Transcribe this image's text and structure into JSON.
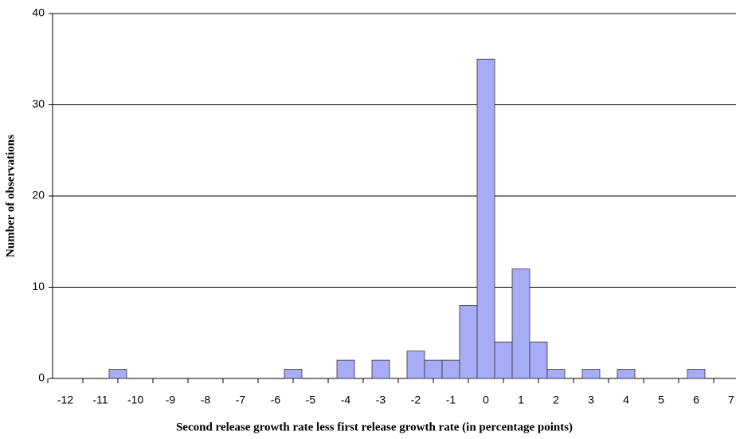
{
  "chart_data": {
    "type": "bar",
    "x_label": "Second release growth rate less first release growth rate (in percentage points)",
    "y_label": "Number of observations",
    "categories": [
      "-12",
      null,
      "-11",
      null,
      "-10",
      null,
      "-9",
      null,
      "-8",
      null,
      "-7",
      null,
      "-6",
      null,
      "-5",
      null,
      "-4",
      null,
      "-3",
      null,
      "-2",
      null,
      "-1",
      null,
      "0",
      null,
      "1",
      null,
      "2",
      null,
      "3",
      null,
      "4",
      null,
      "5",
      null,
      "6",
      null,
      "7"
    ],
    "values": [
      0,
      0,
      0,
      1,
      0,
      0,
      0,
      0,
      0,
      0,
      0,
      0,
      0,
      1,
      0,
      0,
      2,
      0,
      2,
      0,
      3,
      2,
      2,
      8,
      35,
      4,
      12,
      4,
      1,
      0,
      1,
      0,
      1,
      0,
      0,
      0,
      1,
      0,
      0
    ],
    "color": "#a8abf5",
    "ylim": [
      0,
      40
    ],
    "yticks": [
      0,
      10,
      20,
      30,
      40
    ],
    "grid": true
  }
}
